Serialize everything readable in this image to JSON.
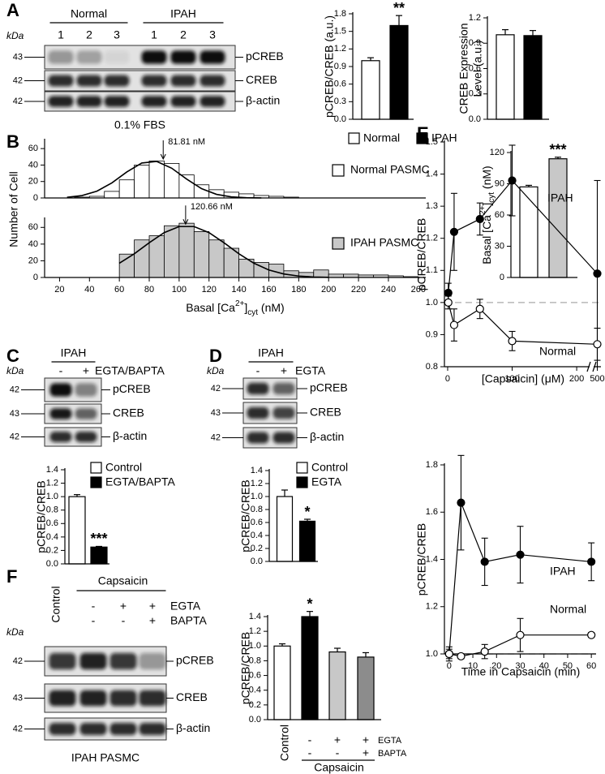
{
  "panel_letters": [
    "A",
    "B",
    "C",
    "D",
    "E",
    "F"
  ],
  "blots": [
    {
      "kda_unit": "kDa",
      "groups": [
        {
          "label": "Normal",
          "lanes": [
            "1",
            "2",
            "3"
          ]
        },
        {
          "label": "IPAH",
          "lanes": [
            "1",
            "2",
            "3"
          ]
        }
      ],
      "rows": [
        {
          "kda": "43",
          "label": "pCREB"
        },
        {
          "kda": "42",
          "label": "CREB"
        },
        {
          "kda": "42",
          "label": "β-actin"
        }
      ],
      "caption": "0.1% FBS"
    },
    {
      "kda_unit": "kDa",
      "groups": [
        {
          "label": "IPAH",
          "lanes": [
            "-",
            "+"
          ]
        }
      ],
      "treatment": "EGTA/BAPTA",
      "rows": [
        {
          "kda": "42",
          "label": "pCREB"
        },
        {
          "kda": "43",
          "label": "CREB"
        },
        {
          "kda": "42",
          "label": "β-actin"
        }
      ]
    },
    {
      "kda_unit": "kDa",
      "groups": [
        {
          "label": "IPAH",
          "lanes": [
            "-",
            "+"
          ]
        }
      ],
      "treatment": "EGTA",
      "rows": [
        {
          "kda": "42",
          "label": "pCREB"
        },
        {
          "kda": "43",
          "label": "CREB"
        },
        {
          "kda": "42",
          "label": "β-actin"
        }
      ]
    },
    {
      "kda_unit": "kDa",
      "control": "Control",
      "group": "Capsaicin",
      "treatments": [
        {
          "label": "EGTA",
          "signs": [
            "-",
            "+",
            "+"
          ]
        },
        {
          "label": "BAPTA",
          "signs": [
            "-",
            "-",
            "+"
          ]
        }
      ],
      "rows": [
        {
          "kda": "42",
          "label": "pCREB"
        },
        {
          "kda": "43",
          "label": "CREB"
        },
        {
          "kda": "42",
          "label": "β-actin"
        }
      ],
      "caption": "IPAH PASMC"
    }
  ],
  "chart_data": [
    {
      "type": "bar",
      "ylabel": "pCREB/CREB (a.u.)",
      "ylim": [
        0,
        1.8
      ],
      "yticks": [
        {
          "value": 0,
          "label": "0.0"
        },
        0.3,
        0.6,
        0.9,
        1.2,
        1.5,
        1.8
      ],
      "values": [
        1.0,
        1.6
      ],
      "errors": [
        0.05,
        0.17
      ],
      "colors": [
        "#ffffff",
        "#000000"
      ],
      "stars": [
        null,
        "**"
      ],
      "legend": [
        {
          "name": "Normal",
          "color": "#ffffff"
        },
        {
          "name": "IPAH",
          "color": "#000000"
        }
      ]
    },
    {
      "type": "bar",
      "ylabel": [
        "CREB Expression",
        "Level (a.u.)"
      ],
      "ylim": [
        0,
        1.2
      ],
      "yticks": [
        {
          "value": 0,
          "label": "0.0"
        },
        0.3,
        0.6,
        0.9,
        1.2
      ],
      "values": [
        1.0,
        0.99
      ],
      "errors": [
        0.06,
        0.06
      ],
      "colors": [
        "#ffffff",
        "#000000"
      ]
    },
    {
      "type": "histogram",
      "ylabel": "Number of Cell",
      "xlim": [
        10,
        265
      ],
      "ylim": [
        0,
        70
      ],
      "yticks": [
        0,
        20,
        40,
        60
      ],
      "bins": [
        30,
        40,
        50,
        60,
        70,
        80,
        90,
        100,
        110,
        120,
        130,
        140,
        150,
        160,
        170,
        180
      ],
      "counts": [
        1,
        2,
        8,
        22,
        40,
        45,
        42,
        28,
        16,
        10,
        7,
        5,
        3,
        2,
        1
      ],
      "color": "#ffffff",
      "name": "Normal PASMC",
      "annotation": "81.81 nM",
      "fit": {
        "x": [
          25,
          35,
          45,
          55,
          65,
          75,
          85,
          95,
          105,
          115,
          125,
          135,
          145,
          155
        ],
        "values": [
          0.8,
          2.9,
          8.3,
          18.3,
          31.6,
          42.5,
          44.4,
          36.2,
          23.0,
          11.3,
          4.4,
          1.3,
          0.3,
          0.1
        ]
      }
    },
    {
      "type": "histogram",
      "xlim": [
        10,
        265
      ],
      "ylim": [
        0,
        70
      ],
      "yticks": [
        0,
        20,
        40,
        60
      ],
      "xticks": [
        20,
        40,
        60,
        80,
        100,
        120,
        140,
        160,
        180,
        200,
        220,
        240,
        260
      ],
      "xlabel_parts": [
        {
          "text": "Basal [Ca"
        },
        {
          "text": "2+",
          "shift": "sup"
        },
        {
          "text": "]"
        },
        {
          "text": "cyt",
          "shift": "sub"
        },
        {
          "text": " (nM)"
        }
      ],
      "bins": [
        60,
        70,
        80,
        90,
        100,
        110,
        120,
        130,
        140,
        150,
        160,
        170,
        180,
        190,
        200,
        210,
        220,
        230,
        240,
        250,
        260
      ],
      "counts": [
        28,
        45,
        50,
        62,
        65,
        55,
        45,
        35,
        22,
        18,
        16,
        8,
        6,
        9,
        4,
        4,
        3,
        3,
        2,
        1
      ],
      "color": "#c8c8c8",
      "name": "IPAH PASMC",
      "annotation": "120.66 nM",
      "fit": {
        "x": [
          60,
          70,
          80,
          90,
          100,
          110,
          120,
          130,
          140,
          150,
          160,
          170,
          180,
          190,
          200
        ],
        "values": [
          17.1,
          28.4,
          41.6,
          53.7,
          61.0,
          61.0,
          53.7,
          41.6,
          28.4,
          17.1,
          9.0,
          4.2,
          1.7,
          0.6,
          0.2
        ]
      }
    },
    {
      "type": "bar",
      "ylabel_parts": [
        {
          "text": "Basal [Ca"
        },
        {
          "text": "2+",
          "shift": "sup"
        },
        {
          "text": "]"
        },
        {
          "text": "cyt",
          "shift": "sub"
        },
        {
          "text": " (nM)"
        }
      ],
      "ylim": [
        0,
        120
      ],
      "yticks": [
        0,
        30,
        60,
        90,
        120
      ],
      "values": [
        87,
        114
      ],
      "errors": [
        1.5,
        1.5
      ],
      "colors": [
        "#ffffff",
        "#c8c8c8"
      ],
      "stars": [
        null,
        "***"
      ]
    },
    {
      "type": "bar",
      "ylabel": "pCREB/CREB",
      "ylim": [
        0,
        1.4
      ],
      "yticks": [
        {
          "value": 0,
          "label": "0.0"
        },
        0.2,
        0.4,
        0.6,
        0.8,
        {
          "value": 1,
          "label": "1.0"
        },
        1.2,
        1.4
      ],
      "values": [
        1.0,
        0.25
      ],
      "errors": [
        0.03,
        0.01
      ],
      "colors": [
        "#ffffff",
        "#000000"
      ],
      "stars": [
        null,
        "***"
      ],
      "legend": [
        {
          "name": "Control",
          "color": "#ffffff"
        },
        {
          "name": "EGTA/BAPTA",
          "color": "#000000"
        }
      ]
    },
    {
      "type": "bar",
      "ylabel": "pCREB/CREB",
      "ylim": [
        0,
        1.4
      ],
      "yticks": [
        {
          "value": 0,
          "label": "0.0"
        },
        0.2,
        0.4,
        0.6,
        0.8,
        {
          "value": 1,
          "label": "1.0"
        },
        1.2,
        1.4
      ],
      "values": [
        1.0,
        0.62
      ],
      "errors": [
        0.1,
        0.03
      ],
      "colors": [
        "#ffffff",
        "#000000"
      ],
      "stars": [
        null,
        "*"
      ],
      "legend": [
        {
          "name": "Control",
          "color": "#ffffff"
        },
        {
          "name": "EGTA",
          "color": "#000000"
        }
      ]
    },
    {
      "type": "line",
      "ylabel": "pCREB/CREB",
      "xlabel": "[Capsaicin] (μM)",
      "x": [
        1,
        10,
        50,
        100,
        500
      ],
      "xlim": [
        -5,
        510
      ],
      "xbreak": [
        220,
        490
      ],
      "xticks": [
        0,
        100,
        200,
        500
      ],
      "ylim": [
        0.8,
        1.5
      ],
      "yticks": [
        0.8,
        0.9,
        {
          "value": 1,
          "label": "1.0"
        },
        1.1,
        1.2,
        1.3,
        1.4,
        1.5
      ],
      "hline": 1,
      "series": [
        {
          "name": "IPAH",
          "color": "#000000",
          "values": [
            1.03,
            1.22,
            1.26,
            1.38,
            1.09
          ],
          "errors": [
            0.03,
            0.12,
            0.05,
            0.11,
            0.29
          ]
        },
        {
          "name": "Normal",
          "color": "#ffffff",
          "values": [
            1.0,
            0.93,
            0.98,
            0.88,
            0.87
          ],
          "errors": [
            0.02,
            0.05,
            0.03,
            0.03,
            0.05
          ]
        }
      ]
    },
    {
      "type": "line",
      "ylabel": "pCREB/CREB",
      "xlabel": "Time in Capsaicin (min)",
      "x": [
        0,
        5,
        15,
        30,
        60
      ],
      "xlim": [
        -2,
        62
      ],
      "xticks": [
        0,
        10,
        20,
        30,
        40,
        50,
        60
      ],
      "ylim": [
        1.0,
        1.8
      ],
      "yticks": [
        {
          "value": 1,
          "label": "1.0"
        },
        1.2,
        1.4,
        1.6,
        1.8
      ],
      "hline": 1,
      "series": [
        {
          "name": "IPAH",
          "color": "#000000",
          "values": [
            1.0,
            1.64,
            1.39,
            1.42,
            1.39
          ],
          "errors": [
            0.02,
            0.2,
            0.1,
            0.12,
            0.08
          ]
        },
        {
          "name": "Normal",
          "color": "#ffffff",
          "values": [
            1.0,
            0.99,
            1.01,
            1.08,
            1.08
          ],
          "errors": [
            0.03,
            0.01,
            0.03,
            0.07,
            0.01
          ]
        }
      ]
    },
    {
      "type": "bar",
      "ylabel": "pCREB/CREB",
      "ylim": [
        0,
        1.4
      ],
      "yticks": [
        {
          "value": 0,
          "label": "0.0"
        },
        0.2,
        0.4,
        0.6,
        0.8,
        {
          "value": 1,
          "label": "1.0"
        },
        1.2,
        1.4
      ],
      "values": [
        1.0,
        1.4,
        0.92,
        0.85
      ],
      "errors": [
        0.03,
        0.07,
        0.05,
        0.06
      ],
      "colors": [
        "#ffffff",
        "#000000",
        "#c8c8c8",
        "#8c8c8c"
      ],
      "stars": [
        null,
        "*",
        null,
        null
      ],
      "categories": [
        "Control",
        null,
        null,
        null
      ],
      "rows": [
        {
          "label": "EGTA",
          "signs": [
            null,
            "-",
            "+",
            "+"
          ]
        },
        {
          "label": "BAPTA",
          "signs": [
            null,
            "-",
            "-",
            "+"
          ]
        }
      ],
      "group": "Capsaicin"
    }
  ]
}
